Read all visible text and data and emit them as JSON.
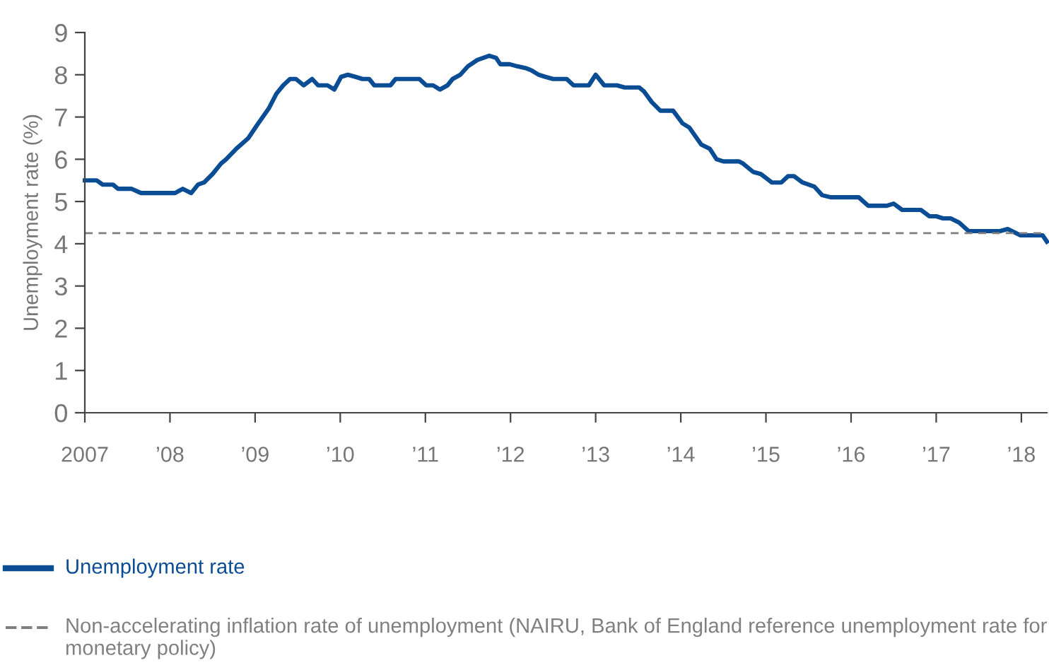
{
  "chart_data": {
    "type": "line",
    "ylabel": "Unemployment rate (%)",
    "x": [
      2007.0,
      2007.14,
      2007.21,
      2007.33,
      2007.39,
      2007.55,
      2007.66,
      2008.06,
      2008.15,
      2008.25,
      2008.33,
      2008.4,
      2008.5,
      2008.6,
      2008.66,
      2008.78,
      2008.92,
      2009.02,
      2009.16,
      2009.25,
      2009.33,
      2009.41,
      2009.48,
      2009.57,
      2009.67,
      2009.74,
      2009.85,
      2009.93,
      2010.01,
      2010.09,
      2010.18,
      2010.26,
      2010.34,
      2010.4,
      2010.59,
      2010.65,
      2010.93,
      2011.01,
      2011.09,
      2011.17,
      2011.26,
      2011.32,
      2011.41,
      2011.5,
      2011.61,
      2011.75,
      2011.83,
      2011.88,
      2011.99,
      2012.08,
      2012.19,
      2012.25,
      2012.33,
      2012.41,
      2012.5,
      2012.66,
      2012.74,
      2012.92,
      2013.0,
      2013.1,
      2013.25,
      2013.34,
      2013.51,
      2013.57,
      2013.66,
      2013.76,
      2013.91,
      2014.02,
      2014.1,
      2014.24,
      2014.34,
      2014.42,
      2014.5,
      2014.68,
      2014.73,
      2014.85,
      2014.94,
      2015.07,
      2015.18,
      2015.26,
      2015.33,
      2015.43,
      2015.57,
      2015.66,
      2015.76,
      2016.09,
      2016.2,
      2016.42,
      2016.5,
      2016.6,
      2016.82,
      2016.92,
      2017.0,
      2017.08,
      2017.17,
      2017.27,
      2017.38,
      2017.75,
      2017.84,
      2017.99,
      2018.25,
      2018.3
    ],
    "series": [
      {
        "name": "Unemployment rate",
        "color": "#0a4d94",
        "values": [
          5.5,
          5.5,
          5.4,
          5.4,
          5.3,
          5.3,
          5.2,
          5.2,
          5.3,
          5.2,
          5.4,
          5.45,
          5.65,
          5.9,
          6.0,
          6.25,
          6.5,
          6.8,
          7.2,
          7.55,
          7.75,
          7.9,
          7.9,
          7.75,
          7.9,
          7.75,
          7.75,
          7.65,
          7.95,
          8.0,
          7.95,
          7.9,
          7.9,
          7.75,
          7.75,
          7.9,
          7.9,
          7.75,
          7.75,
          7.65,
          7.75,
          7.9,
          8.0,
          8.2,
          8.35,
          8.45,
          8.4,
          8.25,
          8.25,
          8.2,
          8.15,
          8.1,
          8.0,
          7.95,
          7.9,
          7.9,
          7.75,
          7.75,
          8.0,
          7.75,
          7.75,
          7.7,
          7.7,
          7.6,
          7.35,
          7.15,
          7.15,
          6.85,
          6.75,
          6.35,
          6.25,
          6.0,
          5.95,
          5.95,
          5.9,
          5.7,
          5.65,
          5.45,
          5.45,
          5.6,
          5.6,
          5.45,
          5.35,
          5.15,
          5.1,
          5.1,
          4.9,
          4.9,
          4.95,
          4.8,
          4.8,
          4.65,
          4.65,
          4.6,
          4.6,
          4.5,
          4.3,
          4.3,
          4.35,
          4.2,
          4.2,
          4.05
        ]
      }
    ],
    "ref_lines": [
      {
        "axis": "y",
        "value": 4.25,
        "label": "Non-accelerating inflation rate of unemployment (NAIRU, Bank of England reference unemployment rate for monetary policy)",
        "color": "#808080",
        "line_style": "dashed"
      }
    ],
    "xlim": [
      2007,
      2018.3
    ],
    "xticks": [
      2007,
      {
        "value": 2008,
        "label": "’08"
      },
      {
        "value": 2009,
        "label": "’09"
      },
      {
        "value": 2010,
        "label": "’10"
      },
      {
        "value": 2011,
        "label": "’11"
      },
      {
        "value": 2012,
        "label": "’12"
      },
      {
        "value": 2013,
        "label": "’13"
      },
      {
        "value": 2014,
        "label": "’14"
      },
      {
        "value": 2015,
        "label": "’15"
      },
      {
        "value": 2016,
        "label": "’16"
      },
      {
        "value": 2017,
        "label": "’17"
      },
      {
        "value": 2018,
        "label": "’18"
      }
    ],
    "ylim": [
      0,
      9
    ],
    "yticks": [
      0,
      1,
      2,
      3,
      4,
      5,
      6,
      7,
      8,
      9
    ],
    "grid": false,
    "legend": "bottom",
    "marker": "none",
    "line_style": "solid"
  }
}
